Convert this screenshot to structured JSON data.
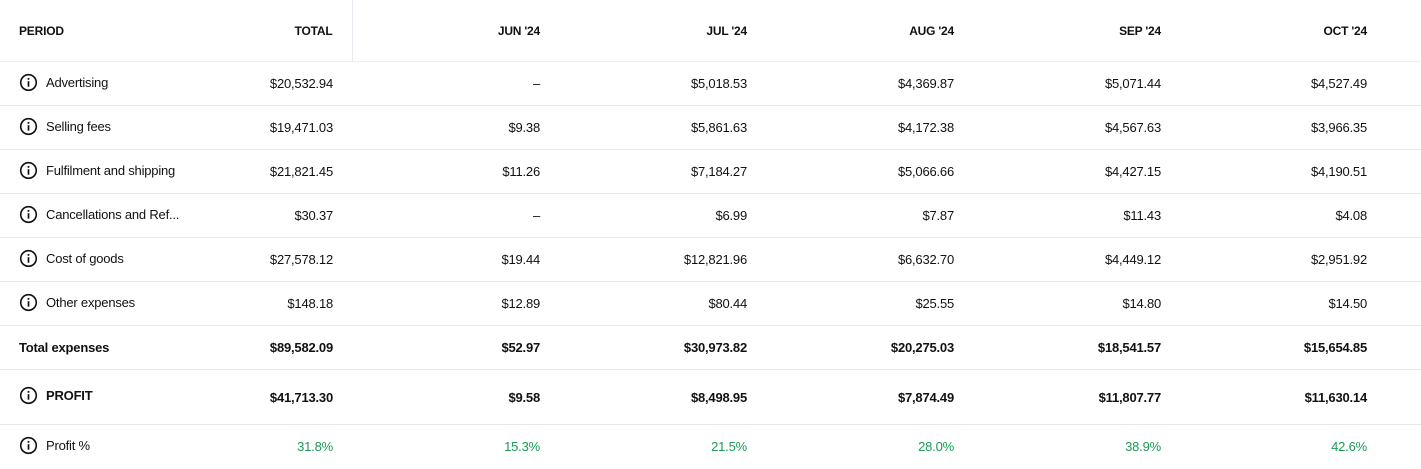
{
  "table": {
    "header": [
      "PERIOD",
      "TOTAL",
      "JUN '24",
      "JUL '24",
      "AUG '24",
      "SEP '24",
      "OCT '24"
    ],
    "rows": [
      [
        "Advertising",
        "$20,532.94",
        "–",
        "$5,018.53",
        "$4,369.87",
        "$5,071.44",
        "$4,527.49"
      ],
      [
        "Selling fees",
        "$19,471.03",
        "$9.38",
        "$5,861.63",
        "$4,172.38",
        "$4,567.63",
        "$3,966.35"
      ],
      [
        "Fulfilment and shipping",
        "$21,821.45",
        "$11.26",
        "$7,184.27",
        "$5,066.66",
        "$4,427.15",
        "$4,190.51"
      ],
      [
        "Cancellations and Ref...",
        "$30.37",
        "–",
        "$6.99",
        "$7.87",
        "$11.43",
        "$4.08"
      ],
      [
        "Cost of goods",
        "$27,578.12",
        "$19.44",
        "$12,821.96",
        "$6,632.70",
        "$4,449.12",
        "$2,951.92"
      ],
      [
        "Other expenses",
        "$148.18",
        "$12.89",
        "$80.44",
        "$25.55",
        "$14.80",
        "$14.50"
      ],
      [
        "Total expenses",
        "$89,582.09",
        "$52.97",
        "$30,973.82",
        "$20,275.03",
        "$18,541.57",
        "$15,654.85"
      ],
      [
        "PROFIT",
        "$41,713.30",
        "$9.58",
        "$8,498.95",
        "$7,874.49",
        "$11,807.77",
        "$11,630.14"
      ],
      [
        "Profit %",
        "31.8%",
        "15.3%",
        "21.5%",
        "28.0%",
        "38.9%",
        "42.6%"
      ]
    ]
  }
}
